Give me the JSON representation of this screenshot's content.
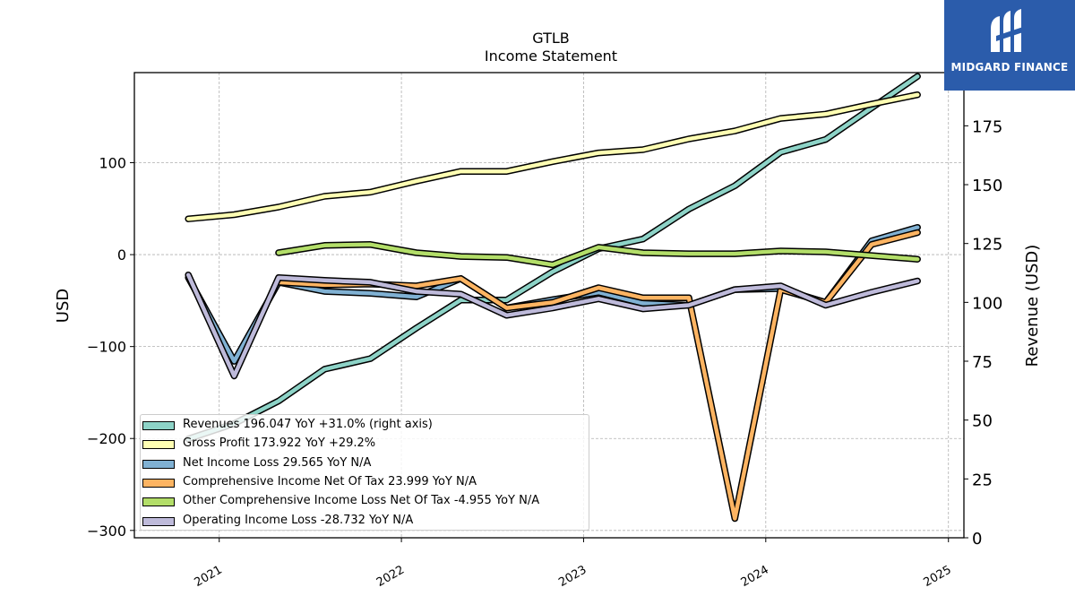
{
  "header": {
    "title": "GTLB",
    "subtitle": "Income Statement"
  },
  "logo": {
    "text": "MIDGARD FINANCE"
  },
  "chart_data": {
    "type": "line",
    "title": "GTLB",
    "subtitle": "Income Statement",
    "ylabel_left": "USD",
    "ylabel_right": "Revenue (USD)",
    "xlabel": "",
    "x_ticks": [
      "2021",
      "2022",
      "2023",
      "2024",
      "2025"
    ],
    "y_left_ticks": [
      100,
      0,
      -100,
      -200,
      -300
    ],
    "y_left_tick_labels": [
      "100",
      "0",
      "−100",
      "−200",
      "−300"
    ],
    "y_right_ticks": [
      175,
      150,
      125,
      100,
      75,
      50,
      25,
      0
    ],
    "ylim_left": [
      -308,
      198
    ],
    "ylim_right": [
      0,
      197.6
    ],
    "grid": true,
    "legend_position": "lower-left",
    "series": [
      {
        "name": "Revenues",
        "legend": "Revenues  196.047 YoY +31.0% (right axis)",
        "axis": "right",
        "color": "#8dd3c7",
        "points": [
          [
            "2020-10-31",
            42
          ],
          [
            "2021-01-31",
            48.5
          ],
          [
            "2021-04-30",
            58.1
          ],
          [
            "2021-07-31",
            71.6
          ],
          [
            "2021-10-31",
            76.1
          ],
          [
            "2022-01-31",
            89.1
          ],
          [
            "2022-04-30",
            101
          ],
          [
            "2022-07-31",
            101
          ],
          [
            "2022-10-31",
            113
          ],
          [
            "2023-01-31",
            122.8
          ],
          [
            "2023-04-30",
            126.9
          ],
          [
            "2023-07-31",
            139.6
          ],
          [
            "2023-10-31",
            149.5
          ],
          [
            "2024-01-31",
            163.8
          ],
          [
            "2024-04-30",
            169.2
          ],
          [
            "2024-07-31",
            182.6
          ],
          [
            "2024-10-31",
            196
          ]
        ]
      },
      {
        "name": "Gross Profit",
        "legend": "Gross Profit  173.922 YoY +29.2%",
        "axis": "left",
        "color": "#ffffb3",
        "points": [
          [
            "2020-10-31",
            38.9
          ],
          [
            "2021-01-31",
            43.5
          ],
          [
            "2021-04-30",
            51.8
          ],
          [
            "2021-07-31",
            63.5
          ],
          [
            "2021-10-31",
            67.9
          ],
          [
            "2022-01-31",
            79.9
          ],
          [
            "2022-04-30",
            90.6
          ],
          [
            "2022-07-31",
            90.6
          ],
          [
            "2022-10-31",
            101.2
          ],
          [
            "2023-01-31",
            110.6
          ],
          [
            "2023-04-30",
            114.2
          ],
          [
            "2023-07-31",
            125.9
          ],
          [
            "2023-10-31",
            134.5
          ],
          [
            "2024-01-31",
            148.2
          ],
          [
            "2024-04-30",
            152.9
          ],
          [
            "2024-07-31",
            163.7
          ],
          [
            "2024-10-31",
            173.9
          ]
        ]
      },
      {
        "name": "Net Income Loss",
        "legend": "Net Income Loss  29.565 YoY N/A",
        "axis": "left",
        "color": "#80b1d3",
        "points": [
          [
            "2020-10-31",
            -25
          ],
          [
            "2021-01-31",
            -116
          ],
          [
            "2021-04-30",
            -30
          ],
          [
            "2021-07-31",
            -40
          ],
          [
            "2021-10-31",
            -42
          ],
          [
            "2022-01-31",
            -46
          ],
          [
            "2022-04-30",
            -26
          ],
          [
            "2022-07-31",
            -58
          ],
          [
            "2022-10-31",
            -49
          ],
          [
            "2023-01-31",
            -41
          ],
          [
            "2023-04-30",
            -53
          ],
          [
            "2023-07-31",
            -55
          ],
          [
            "2023-10-31",
            -38
          ],
          [
            "2024-01-31",
            -37
          ],
          [
            "2024-04-30",
            -52
          ],
          [
            "2024-07-31",
            15
          ],
          [
            "2024-10-31",
            29.6
          ]
        ]
      },
      {
        "name": "Comprehensive Income Net Of Tax",
        "legend": "Comprehensive Income Net Of Tax  23.999 YoY N/A",
        "axis": "left",
        "color": "#fdb462",
        "points": [
          [
            "2021-04-30",
            -30
          ],
          [
            "2021-07-31",
            -33
          ],
          [
            "2021-10-31",
            -32
          ],
          [
            "2022-01-31",
            -34
          ],
          [
            "2022-04-30",
            -26
          ],
          [
            "2022-07-31",
            -58
          ],
          [
            "2022-10-31",
            -52
          ],
          [
            "2023-01-31",
            -36
          ],
          [
            "2023-04-30",
            -47
          ],
          [
            "2023-07-31",
            -47
          ],
          [
            "2023-10-31",
            -287
          ],
          [
            "2024-01-31",
            -38
          ],
          [
            "2024-04-30",
            -52
          ],
          [
            "2024-07-31",
            11
          ],
          [
            "2024-10-31",
            24
          ]
        ]
      },
      {
        "name": "Other Comprehensive Income Loss Net Of Tax",
        "legend": "Other Comprehensive Income Loss Net Of Tax  -4.955 YoY N/A",
        "axis": "left",
        "color": "#b3de69",
        "points": [
          [
            "2021-04-30",
            2
          ],
          [
            "2021-07-31",
            10
          ],
          [
            "2021-10-31",
            11
          ],
          [
            "2022-01-31",
            2
          ],
          [
            "2022-04-30",
            -2
          ],
          [
            "2022-07-31",
            -3
          ],
          [
            "2022-10-31",
            -11
          ],
          [
            "2023-01-31",
            8
          ],
          [
            "2023-04-30",
            2
          ],
          [
            "2023-07-31",
            1
          ],
          [
            "2023-10-31",
            1
          ],
          [
            "2024-01-31",
            4
          ],
          [
            "2024-04-30",
            3
          ],
          [
            "2024-07-31",
            -1
          ],
          [
            "2024-10-31",
            -5
          ]
        ]
      },
      {
        "name": "Operating Income Loss",
        "legend": "Operating Income Loss  -28.732 YoY N/A",
        "axis": "left",
        "color": "#bebada",
        "points": [
          [
            "2020-10-31",
            -22
          ],
          [
            "2021-01-31",
            -132
          ],
          [
            "2021-04-30",
            -25
          ],
          [
            "2021-07-31",
            -28
          ],
          [
            "2021-10-31",
            -30
          ],
          [
            "2022-01-31",
            -40
          ],
          [
            "2022-04-30",
            -43
          ],
          [
            "2022-07-31",
            -66
          ],
          [
            "2022-10-31",
            -58
          ],
          [
            "2023-01-31",
            -48
          ],
          [
            "2023-04-30",
            -59
          ],
          [
            "2023-07-31",
            -55
          ],
          [
            "2023-10-31",
            -38
          ],
          [
            "2024-01-31",
            -34
          ],
          [
            "2024-04-30",
            -55
          ],
          [
            "2024-07-31",
            -41
          ],
          [
            "2024-10-31",
            -28.7
          ]
        ]
      }
    ]
  }
}
